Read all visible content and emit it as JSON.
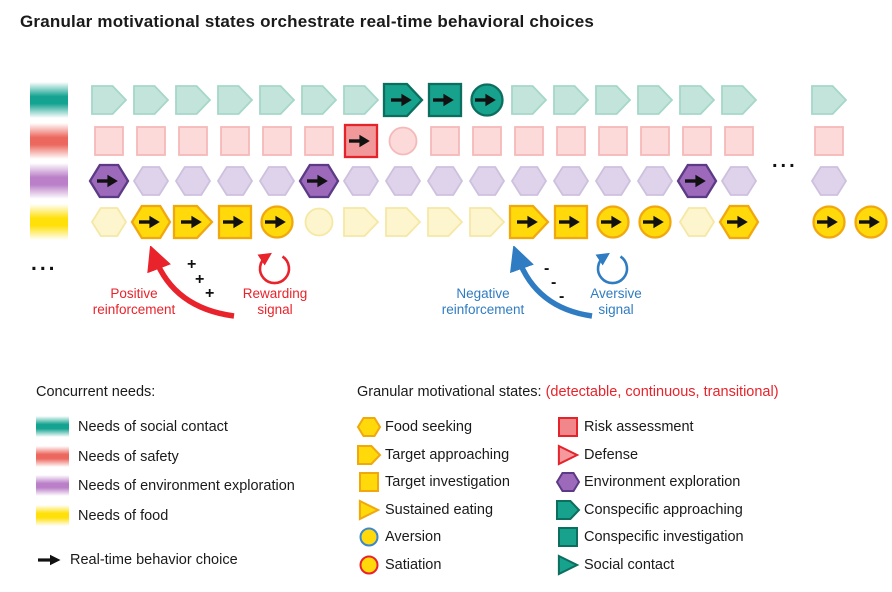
{
  "title": "Granular motivational states orchestrate real-time behavioral choices",
  "colors": {
    "text": "#1a1a1a",
    "black_arrow": "#111111",
    "red_accent": "#e8232b",
    "blue_accent": "#2f7cc2",
    "palettes": {
      "teal": {
        "light_fill": "#c2e4da",
        "light_stroke": "#a6d7c9",
        "active_fill": "#17a28e",
        "active_stroke": "#0b6e5f"
      },
      "pink": {
        "light_fill": "#fcdada",
        "light_stroke": "#f6b9b9",
        "active_fill": "#f1989b",
        "active_stroke": "#e4232b"
      },
      "purple": {
        "light_fill": "#ded3ea",
        "light_stroke": "#cec0df",
        "active_fill": "#9c69bb",
        "active_stroke": "#5c3a85"
      },
      "yellow": {
        "light_fill": "#fdf5cd",
        "light_stroke": "#f5e8a5",
        "active_fill": "#ffd90a",
        "active_stroke": "#f1a70e"
      }
    },
    "circle_pale_stroke": "#badcf0",
    "circle_blue_stroke": "#3c88cb",
    "circle_red_stroke": "#e8242a"
  },
  "diagram": {
    "rows": [
      {
        "id": "social",
        "palette": "teal",
        "need": "Needs of social contact",
        "swatch_color": "#14a390",
        "state_map": {
          "pent": "conspecific-approaching",
          "sq": "conspecific-investigation",
          "tri": "social-contact"
        },
        "tokens": [
          "pent",
          "pent",
          "pent",
          "pent",
          "pent",
          "pent",
          "pent",
          "pent+",
          "sq+",
          "tri+",
          "pent",
          "pent",
          "pent",
          "pent",
          "pent",
          "pent",
          "|",
          "pent"
        ]
      },
      {
        "id": "safety",
        "palette": "pink",
        "need": "Needs of safety",
        "swatch_color": "#ec685e",
        "state_map": {
          "sq": "risk-assessment",
          "tri": "defense"
        },
        "tokens": [
          "sq",
          "sq",
          "sq",
          "sq",
          "sq",
          "sq",
          "sq+",
          "tri",
          "sq",
          "sq",
          "sq",
          "sq",
          "sq",
          "sq",
          "sq",
          "sq",
          "|",
          "sq"
        ]
      },
      {
        "id": "exploration",
        "palette": "purple",
        "need": "Needs of environment exploration",
        "swatch_color": "#ba7fc8",
        "state_map": {
          "hex": "environment-exploration"
        },
        "tokens": [
          "hex+",
          "hex",
          "hex",
          "hex",
          "hex",
          "hex+",
          "hex",
          "hex",
          "hex",
          "hex",
          "hex",
          "hex",
          "hex",
          "hex",
          "hex+",
          "hex",
          "|.",
          "hex"
        ]
      },
      {
        "id": "food",
        "palette": "yellow",
        "need": "Needs of food",
        "swatch_color": "#ffe008",
        "state_map": {
          "hex": "food-seeking",
          "pent": "target-approaching",
          "sq": "target-investigation",
          "tri": "sustained-eating",
          "circ_pale": "aversion",
          "circ_blue": "aversion",
          "circ_red": "satiation"
        },
        "tokens": [
          "hex",
          "hex+",
          "pent+",
          "sq+",
          "tri+",
          "circ~",
          "pent",
          "pent",
          "pent",
          "pent",
          "pent+",
          "sq+",
          "tri+",
          "circ+b",
          "hex",
          "hex+",
          "|",
          "tri+",
          "circ+r"
        ]
      }
    ],
    "ellipsis_left": "...",
    "ellipsis_row": "..."
  },
  "reinforcement": {
    "positive": {
      "line1": "Positive",
      "line2": "reinforcement",
      "marks": [
        "+",
        "+",
        "+"
      ]
    },
    "rewarding": {
      "line1": "Rewarding",
      "line2": "signal"
    },
    "negative": {
      "line1": "Negative",
      "line2": "reinforcement",
      "marks": [
        "-",
        "-",
        "-"
      ]
    },
    "aversive": {
      "line1": "Aversive",
      "line2": "signal"
    }
  },
  "legend_needs": {
    "header": "Concurrent needs:",
    "items": [
      {
        "id": "social",
        "label": "Needs of social contact",
        "color": "#14a390"
      },
      {
        "id": "safety",
        "label": "Needs of safety",
        "color": "#ec685e"
      },
      {
        "id": "exploration",
        "label": "Needs of environment exploration",
        "color": "#ba7fc8"
      },
      {
        "id": "food",
        "label": "Needs of food",
        "color": "#ffe008"
      }
    ],
    "behavior_choice_label": "Real-time behavior choice"
  },
  "legend_states": {
    "header": "Granular motivational states: ",
    "header_note": "(detectable, continuous, transitional)",
    "col1": [
      {
        "shape": "hex",
        "fill": "#ffd90a",
        "stroke": "#f1a70e",
        "label": "Food seeking"
      },
      {
        "shape": "pent",
        "fill": "#ffd90a",
        "stroke": "#f1a70e",
        "label": "Target approaching"
      },
      {
        "shape": "sq",
        "fill": "#ffd90a",
        "stroke": "#f1a70e",
        "label": "Target investigation"
      },
      {
        "shape": "tri",
        "fill": "#ffd90a",
        "stroke": "#f1a70e",
        "label": "Sustained eating"
      },
      {
        "shape": "circ",
        "fill": "#ffd90a",
        "stroke": "#3c88cb",
        "label": "Aversion"
      },
      {
        "shape": "circ",
        "fill": "#ffd90a",
        "stroke": "#e8242a",
        "label": "Satiation"
      }
    ],
    "col2": [
      {
        "shape": "sq",
        "fill": "#f1878b",
        "stroke": "#e4232b",
        "label": "Risk assessment"
      },
      {
        "shape": "tri",
        "fill": "#f5999d",
        "stroke": "#e4232b",
        "label": "Defense"
      },
      {
        "shape": "hex",
        "fill": "#9c69bb",
        "stroke": "#5c3a85",
        "label": "Environment exploration"
      },
      {
        "shape": "pent",
        "fill": "#17a28e",
        "stroke": "#0b6e5f",
        "label": "Conspecific approaching"
      },
      {
        "shape": "sq",
        "fill": "#17a28e",
        "stroke": "#0b6e5f",
        "label": "Conspecific investigation"
      },
      {
        "shape": "tri",
        "fill": "#17a28e",
        "stroke": "#0b6e5f",
        "label": "Social contact"
      }
    ]
  }
}
